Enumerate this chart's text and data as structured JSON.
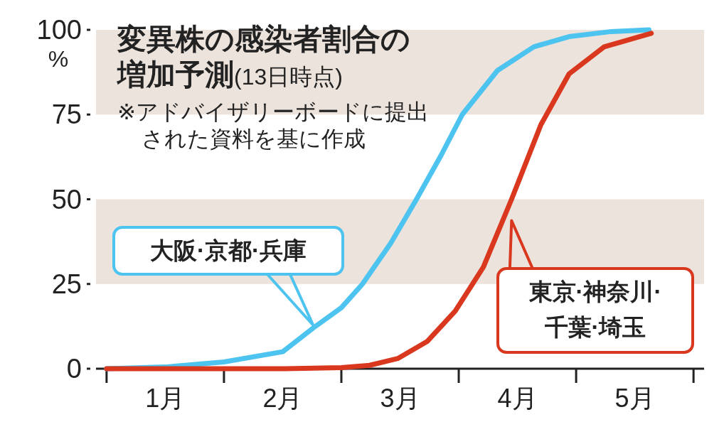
{
  "chart_data": {
    "type": "line",
    "title": "変異株の感染者割合の増加予測",
    "subtitle": "(13日時点)",
    "ylabel": "%",
    "annotations": [
      "※アドバイザリーボードに提出された資料を基に作成"
    ],
    "xlim": [
      -0.09,
      5.09
    ],
    "xticks": [
      {
        "value": 0.5,
        "label": "1月"
      },
      {
        "value": 1.5,
        "label": "2月"
      },
      {
        "value": 2.5,
        "label": "3月"
      },
      {
        "value": 3.5,
        "label": "4月"
      },
      {
        "value": 4.5,
        "label": "5月"
      }
    ],
    "ylim": [
      0,
      100
    ],
    "yticks": [
      0,
      25,
      50,
      75,
      100
    ],
    "bands": [
      {
        "axis": "y",
        "from": 25,
        "to": 50,
        "color": "#ece3dc"
      },
      {
        "axis": "y",
        "from": 75,
        "to": 100,
        "color": "#ece3dc"
      }
    ],
    "grid": false,
    "legend": "bottom right",
    "line_style": "solid",
    "series": [
      {
        "name": "大阪·京都·兵庫",
        "color": "#4dc3f0",
        "x": [
          0,
          0.5,
          1,
          1.5,
          1.76,
          2,
          2.18,
          2.42,
          2.64,
          2.85,
          3.03,
          3.33,
          3.64,
          3.94,
          4.3,
          4.62
        ],
        "values": [
          0,
          0.5,
          2,
          5,
          12,
          18,
          25,
          37,
          50,
          63,
          75,
          88,
          95,
          98,
          99.5,
          100
        ]
      },
      {
        "name": "東京·神奈川·千葉·埼玉",
        "color": "#d9381e",
        "x": [
          0,
          1.52,
          2,
          2.24,
          2.48,
          2.73,
          2.97,
          3.21,
          3.45,
          3.7,
          3.94,
          4.24,
          4.64
        ],
        "values": [
          0,
          0,
          0.3,
          1,
          3,
          8,
          17,
          30,
          50,
          72,
          87,
          95,
          99
        ]
      }
    ]
  }
}
